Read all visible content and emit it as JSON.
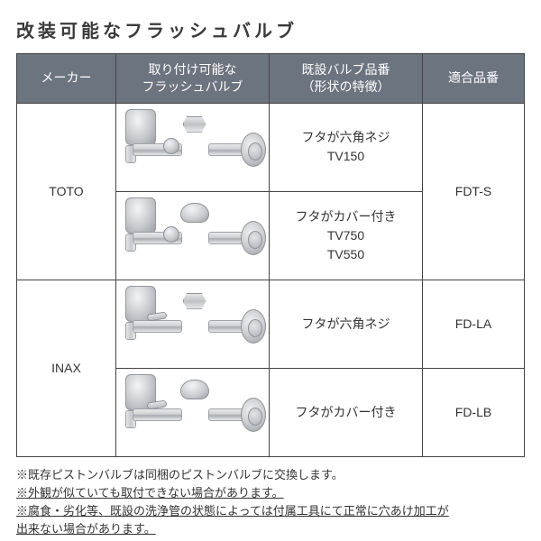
{
  "title": "改装可能なフラッシュバルブ",
  "headers": {
    "maker": "メーカー",
    "valve": "取り付け可能な\nフラッシュバルブ",
    "existing": "既設バルブ品番\n（形状の特徴）",
    "compatible": "適合品番"
  },
  "rows": {
    "toto": {
      "maker": "TOTO",
      "r1_desc_l1": "フタが六角ネジ",
      "r1_desc_l2": "TV150",
      "r2_desc_l1": "フタがカバー付き",
      "r2_desc_l2": "TV750",
      "r2_desc_l3": "TV550",
      "compat": "FDT-S"
    },
    "inax": {
      "maker": "INAX",
      "r1_desc": "フタが六角ネジ",
      "r1_compat": "FD-LA",
      "r2_desc": "フタがカバー付き",
      "r2_compat": "FD-LB"
    }
  },
  "notes": {
    "n1": "※既存ピストンバルブは同梱のピストンバルブに交換します。",
    "n2": "※外観が似ていても取付できない場合があります。",
    "n3a": "※腐食・劣化等、既設の洗浄管の状態によっては付属工具にて正常に穴あけ加工が",
    "n3b": "出来ない場合があります。"
  },
  "colors": {
    "header_bg": "#6c7480",
    "header_fg": "#ffffff",
    "border": "#444444",
    "title": "#3a3a3a"
  }
}
